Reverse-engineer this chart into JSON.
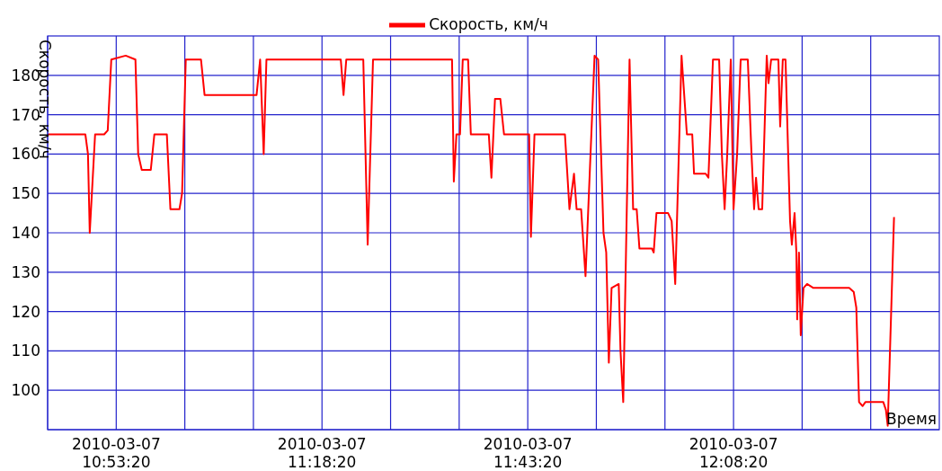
{
  "chart_data": {
    "type": "line",
    "ylabel": "Скорость, км/ч",
    "xlabel": "Время",
    "legend": "top",
    "grid": true,
    "marker": "none",
    "line_style": "solid",
    "xlim": [
      "2010-03-07T10:45:00",
      "2010-03-07T12:33:20"
    ],
    "xticks": [
      {
        "value": "2010-03-07T10:53:20",
        "label": "2010-03-07\n10:53:20"
      },
      {
        "value": "2010-03-07T11:01:40",
        "label": null
      },
      {
        "value": "2010-03-07T11:10:00",
        "label": null
      },
      {
        "value": "2010-03-07T11:18:20",
        "label": "2010-03-07\n11:18:20"
      },
      {
        "value": "2010-03-07T11:26:40",
        "label": null
      },
      {
        "value": "2010-03-07T11:35:00",
        "label": null
      },
      {
        "value": "2010-03-07T11:43:20",
        "label": "2010-03-07\n11:43:20"
      },
      {
        "value": "2010-03-07T11:51:40",
        "label": null
      },
      {
        "value": "2010-03-07T12:00:00",
        "label": null
      },
      {
        "value": "2010-03-07T12:08:20",
        "label": "2010-03-07\n12:08:20"
      },
      {
        "value": "2010-03-07T12:16:40",
        "label": null
      },
      {
        "value": "2010-03-07T12:25:00",
        "label": null
      }
    ],
    "ylim": [
      90,
      190
    ],
    "yticks": [
      100,
      110,
      120,
      130,
      140,
      150,
      160,
      170,
      180
    ],
    "x": [
      "2010-03-07T10:45:00",
      "2010-03-07T10:47:24",
      "2010-03-07T10:49:35",
      "2010-03-07T10:49:54",
      "2010-03-07T10:50:07",
      "2010-03-07T10:50:46",
      "2010-03-07T10:51:52",
      "2010-03-07T10:52:18",
      "2010-03-07T10:52:44",
      "2010-03-07T10:54:29",
      "2010-03-07T10:55:40",
      "2010-03-07T10:56:00",
      "2010-03-07T10:56:26",
      "2010-03-07T10:57:32",
      "2010-03-07T10:57:58",
      "2010-03-07T10:59:29",
      "2010-03-07T10:59:55",
      "2010-03-07T11:01:01",
      "2010-03-07T11:01:20",
      "2010-03-07T11:01:47",
      "2010-03-07T11:03:38",
      "2010-03-07T11:04:04",
      "2010-03-07T11:05:22",
      "2010-03-07T11:10:23",
      "2010-03-07T11:10:49",
      "2010-03-07T11:11:15",
      "2010-03-07T11:11:35",
      "2010-03-07T11:13:00",
      "2010-03-07T11:20:37",
      "2010-03-07T11:20:57",
      "2010-03-07T11:21:17",
      "2010-03-07T11:23:21",
      "2010-03-07T11:23:53",
      "2010-03-07T11:24:32",
      "2010-03-07T11:27:09",
      "2010-03-07T11:34:08",
      "2010-03-07T11:34:21",
      "2010-03-07T11:34:40",
      "2010-03-07T11:35:06",
      "2010-03-07T11:35:26",
      "2010-03-07T11:36:05",
      "2010-03-07T11:36:25",
      "2010-03-07T11:38:36",
      "2010-03-07T11:38:55",
      "2010-03-07T11:39:21",
      "2010-03-07T11:40:00",
      "2010-03-07T11:40:27",
      "2010-03-07T11:43:30",
      "2010-03-07T11:43:43",
      "2010-03-07T11:44:09",
      "2010-03-07T11:47:51",
      "2010-03-07T11:48:24",
      "2010-03-07T11:48:57",
      "2010-03-07T11:49:16",
      "2010-03-07T11:49:49",
      "2010-03-07T11:50:21",
      "2010-03-07T11:51:27",
      "2010-03-07T11:51:53",
      "2010-03-07T11:52:32",
      "2010-03-07T11:52:52",
      "2010-03-07T11:53:11",
      "2010-03-07T11:53:31",
      "2010-03-07T11:54:23",
      "2010-03-07T11:54:36",
      "2010-03-07T11:54:56",
      "2010-03-07T11:55:42",
      "2010-03-07T11:56:08",
      "2010-03-07T11:56:34",
      "2010-03-07T11:56:54",
      "2010-03-07T11:58:25",
      "2010-03-07T11:58:38",
      "2010-03-07T11:58:58",
      "2010-03-07T12:00:23",
      "2010-03-07T12:00:49",
      "2010-03-07T12:01:15",
      "2010-03-07T12:02:01",
      "2010-03-07T12:02:40",
      "2010-03-07T12:03:19",
      "2010-03-07T12:03:32",
      "2010-03-07T12:04:57",
      "2010-03-07T12:05:17",
      "2010-03-07T12:05:50",
      "2010-03-07T12:06:35",
      "2010-03-07T12:06:55",
      "2010-03-07T12:07:15",
      "2010-03-07T12:07:34",
      "2010-03-07T12:08:00",
      "2010-03-07T12:08:20",
      "2010-03-07T12:08:46",
      "2010-03-07T12:09:12",
      "2010-03-07T12:10:04",
      "2010-03-07T12:10:31",
      "2010-03-07T12:10:50",
      "2010-03-07T12:11:04",
      "2010-03-07T12:11:23",
      "2010-03-07T12:11:49",
      "2010-03-07T12:12:22",
      "2010-03-07T12:12:35",
      "2010-03-07T12:12:54",
      "2010-03-07T12:13:47",
      "2010-03-07T12:14:00",
      "2010-03-07T12:14:19",
      "2010-03-07T12:14:39",
      "2010-03-07T12:15:12",
      "2010-03-07T12:15:25",
      "2010-03-07T12:15:45",
      "2010-03-07T12:15:58",
      "2010-03-07T12:16:04",
      "2010-03-07T12:16:17",
      "2010-03-07T12:16:30",
      "2010-03-07T12:16:50",
      "2010-03-07T12:17:16",
      "2010-03-07T12:18:02",
      "2010-03-07T12:22:23",
      "2010-03-07T12:22:56",
      "2010-03-07T12:23:15",
      "2010-03-07T12:23:35",
      "2010-03-07T12:24:01",
      "2010-03-07T12:24:21",
      "2010-03-07T12:26:32",
      "2010-03-07T12:26:51",
      "2010-03-07T12:27:04",
      "2010-03-07T12:27:50"
    ],
    "series": [
      {
        "name": "Скорость, км/ч",
        "color": "#ff0000",
        "values": [
          165,
          165,
          165,
          160,
          140,
          165,
          165,
          166,
          184,
          185,
          184,
          160,
          156,
          156,
          165,
          165,
          146,
          146,
          150,
          184,
          184,
          175,
          175,
          175,
          184,
          160,
          184,
          184,
          184,
          175,
          184,
          184,
          137,
          184,
          184,
          184,
          153,
          165,
          165,
          184,
          184,
          165,
          165,
          154,
          174,
          174,
          165,
          165,
          139,
          165,
          165,
          146,
          155,
          146,
          146,
          129,
          185,
          184,
          140,
          135,
          107,
          126,
          127,
          110,
          97,
          184,
          146,
          146,
          136,
          136,
          135,
          145,
          145,
          143,
          127,
          185,
          165,
          165,
          155,
          155,
          154,
          184,
          184,
          160,
          146,
          160,
          184,
          146,
          160,
          184,
          184,
          160,
          146,
          154,
          146,
          146,
          185,
          178,
          184,
          184,
          167,
          184,
          184,
          143,
          137,
          145,
          135,
          118,
          135,
          114,
          126,
          127,
          126,
          126,
          125,
          121,
          97,
          96,
          97,
          97,
          95,
          91,
          144
        ]
      }
    ]
  }
}
